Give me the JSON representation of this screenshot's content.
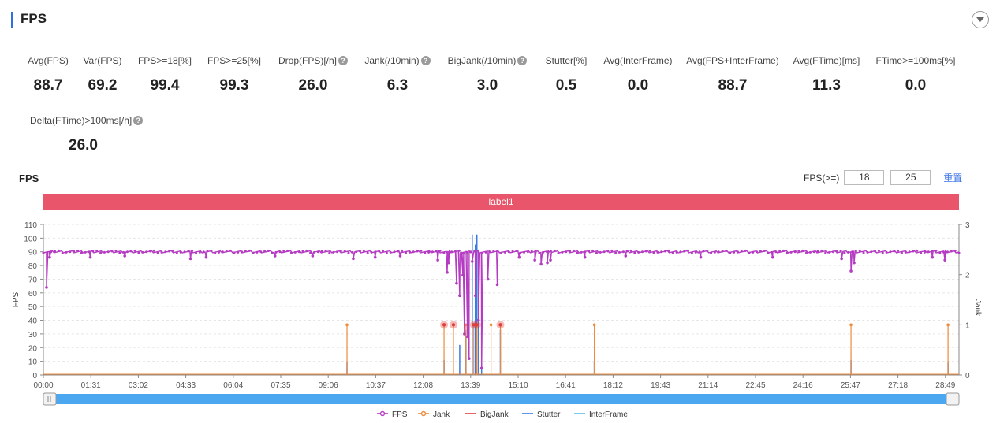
{
  "header": {
    "title": "FPS"
  },
  "metrics_row1": [
    {
      "label": "Avg(FPS)",
      "value": "88.7",
      "help": false
    },
    {
      "label": "Var(FPS)",
      "value": "69.2",
      "help": false
    },
    {
      "label": "FPS>=18[%]",
      "value": "99.4",
      "help": false
    },
    {
      "label": "FPS>=25[%]",
      "value": "99.3",
      "help": false
    },
    {
      "label": "Drop(FPS)[/h]",
      "value": "26.0",
      "help": true
    },
    {
      "label": "Jank(/10min)",
      "value": "6.3",
      "help": true
    },
    {
      "label": "BigJank(/10min)",
      "value": "3.0",
      "help": true
    },
    {
      "label": "Stutter[%]",
      "value": "0.5",
      "help": false
    },
    {
      "label": "Avg(InterFrame)",
      "value": "0.0",
      "help": false
    },
    {
      "label": "Avg(FPS+InterFrame)",
      "value": "88.7",
      "help": false
    },
    {
      "label": "Avg(FTime)[ms]",
      "value": "11.3",
      "help": false
    },
    {
      "label": "FTime>=100ms[%]",
      "value": "0.0",
      "help": false
    }
  ],
  "metrics_row2": [
    {
      "label": "Delta(FTime)>100ms[/h]",
      "value": "26.0",
      "help": true
    }
  ],
  "chart_section": {
    "title": "FPS",
    "threshold_label": "FPS(>=)",
    "threshold_low": "18",
    "threshold_high": "25",
    "reset_label": "重置",
    "label_band": "label1"
  },
  "colors": {
    "fps": "#b53cc2",
    "jank": "#ef8a3a",
    "bigjank": "#e0403a",
    "stutter": "#3b7be0",
    "interframe": "#5bc0eb",
    "label_band": "#e9556a",
    "slider": "#4ba8f0"
  },
  "chart_data": {
    "type": "line",
    "xlabel": "",
    "ylabel": "FPS",
    "y2label": "Jank",
    "ylim": [
      0,
      110
    ],
    "y2lim": [
      0,
      3
    ],
    "yticks": [
      0,
      10,
      20,
      30,
      40,
      50,
      60,
      70,
      80,
      90,
      100,
      110
    ],
    "y2ticks": [
      0,
      1,
      2,
      3
    ],
    "xlim_min": [
      0,
      29.25
    ],
    "xticks": [
      "00:00",
      "01:31",
      "03:02",
      "04:33",
      "06:04",
      "07:35",
      "09:06",
      "10:37",
      "12:08",
      "13:39",
      "15:10",
      "16:41",
      "18:12",
      "19:43",
      "21:14",
      "22:45",
      "24:16",
      "25:47",
      "27:18",
      "28:49"
    ],
    "legend": [
      "FPS",
      "Jank",
      "BigJank",
      "Stutter",
      "InterFrame"
    ],
    "legend_position": "bottom",
    "fps_baseline": 90,
    "fps_dips": [
      {
        "x_min": 0.1,
        "y": 64
      },
      {
        "x_min": 0.2,
        "y": 86
      },
      {
        "x_min": 1.5,
        "y": 86
      },
      {
        "x_min": 2.6,
        "y": 87
      },
      {
        "x_min": 4.7,
        "y": 85
      },
      {
        "x_min": 5.2,
        "y": 86
      },
      {
        "x_min": 7.4,
        "y": 87
      },
      {
        "x_min": 8.6,
        "y": 87
      },
      {
        "x_min": 9.9,
        "y": 85
      },
      {
        "x_min": 10.6,
        "y": 86
      },
      {
        "x_min": 11.4,
        "y": 87
      },
      {
        "x_min": 12.6,
        "y": 84
      },
      {
        "x_min": 12.9,
        "y": 75
      },
      {
        "x_min": 12.95,
        "y": 82
      },
      {
        "x_min": 13.2,
        "y": 67
      },
      {
        "x_min": 13.3,
        "y": 58
      },
      {
        "x_min": 13.4,
        "y": 73
      },
      {
        "x_min": 13.45,
        "y": 30
      },
      {
        "x_min": 13.55,
        "y": 28
      },
      {
        "x_min": 13.6,
        "y": 12
      },
      {
        "x_min": 13.7,
        "y": 83
      },
      {
        "x_min": 13.8,
        "y": 58
      },
      {
        "x_min": 13.9,
        "y": 40
      },
      {
        "x_min": 14.0,
        "y": 5
      },
      {
        "x_min": 14.2,
        "y": 70
      },
      {
        "x_min": 14.5,
        "y": 66
      },
      {
        "x_min": 15.2,
        "y": 86
      },
      {
        "x_min": 15.7,
        "y": 84
      },
      {
        "x_min": 15.9,
        "y": 81
      },
      {
        "x_min": 16.1,
        "y": 82
      },
      {
        "x_min": 16.2,
        "y": 84
      },
      {
        "x_min": 17.3,
        "y": 86
      },
      {
        "x_min": 18.6,
        "y": 87
      },
      {
        "x_min": 21.0,
        "y": 86
      },
      {
        "x_min": 23.3,
        "y": 86
      },
      {
        "x_min": 25.5,
        "y": 85
      },
      {
        "x_min": 25.8,
        "y": 76
      },
      {
        "x_min": 25.9,
        "y": 82
      },
      {
        "x_min": 28.4,
        "y": 86
      },
      {
        "x_min": 28.8,
        "y": 84
      }
    ],
    "jank": [
      {
        "x_min": 9.7,
        "y": 1
      },
      {
        "x_min": 12.8,
        "y": 1
      },
      {
        "x_min": 13.1,
        "y": 1
      },
      {
        "x_min": 13.5,
        "y": 1
      },
      {
        "x_min": 13.75,
        "y": 1
      },
      {
        "x_min": 13.85,
        "y": 1
      },
      {
        "x_min": 14.3,
        "y": 1
      },
      {
        "x_min": 14.6,
        "y": 1
      },
      {
        "x_min": 17.6,
        "y": 1
      },
      {
        "x_min": 25.8,
        "y": 1
      },
      {
        "x_min": 28.9,
        "y": 1
      }
    ],
    "bigjank": [
      {
        "x_min": 12.8,
        "y": 1
      },
      {
        "x_min": 13.1,
        "y": 1
      },
      {
        "x_min": 13.75,
        "y": 1
      },
      {
        "x_min": 13.85,
        "y": 1
      },
      {
        "x_min": 14.6,
        "y": 1
      }
    ],
    "stutter": [
      {
        "x_min": 9.7,
        "y": 0.25
      },
      {
        "x_min": 12.8,
        "y": 0.3
      },
      {
        "x_min": 13.3,
        "y": 0.6
      },
      {
        "x_min": 13.5,
        "y": 0.9
      },
      {
        "x_min": 13.7,
        "y": 2.8
      },
      {
        "x_min": 13.8,
        "y": 2.6
      },
      {
        "x_min": 13.85,
        "y": 2.8
      },
      {
        "x_min": 13.9,
        "y": 1.8
      },
      {
        "x_min": 14.0,
        "y": 0.9
      },
      {
        "x_min": 14.6,
        "y": 0.9
      },
      {
        "x_min": 17.6,
        "y": 0.25
      },
      {
        "x_min": 25.8,
        "y": 0.3
      },
      {
        "x_min": 28.9,
        "y": 0.25
      }
    ],
    "interframe": []
  }
}
